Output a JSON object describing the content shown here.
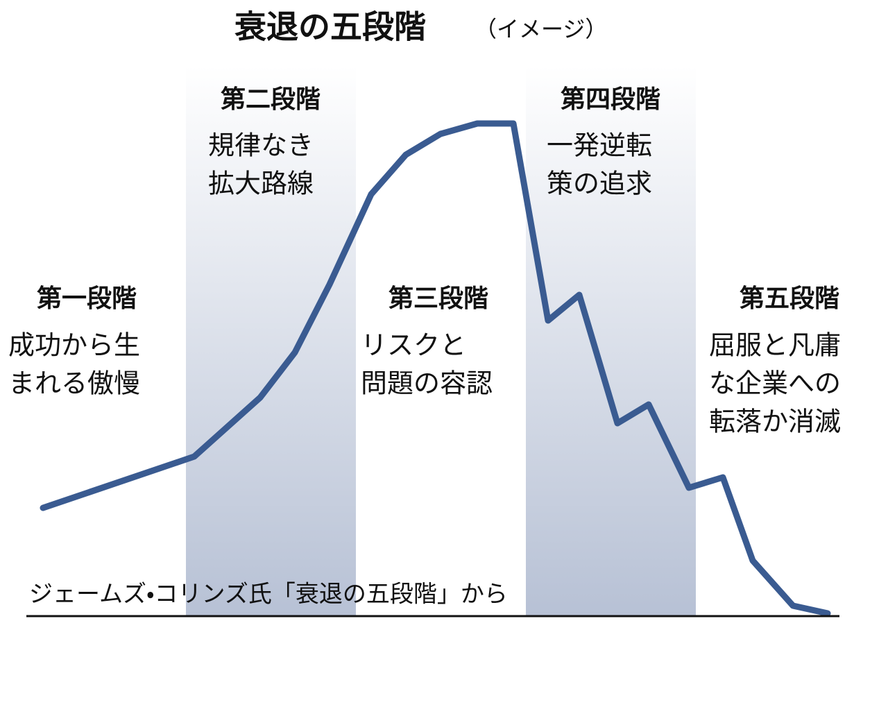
{
  "header": {
    "title": "衰退の五段階",
    "subtitle": "（イメージ）"
  },
  "stages": [
    {
      "name": "第一段階",
      "lines": [
        "成功から生",
        "まれる傲慢"
      ]
    },
    {
      "name": "第二段階",
      "lines": [
        "規律なき",
        "拡大路線"
      ]
    },
    {
      "name": "第三段階",
      "lines": [
        "リスクと",
        "問題の容認"
      ]
    },
    {
      "name": "第四段階",
      "lines": [
        "一発逆転",
        "策の追求"
      ]
    },
    {
      "name": "第五段階",
      "lines": [
        "屈服と凡庸",
        "な企業への",
        "転落か消滅"
      ]
    }
  ],
  "source": "ジェームズ・コリンズ氏「衰退の五段階」から"
}
